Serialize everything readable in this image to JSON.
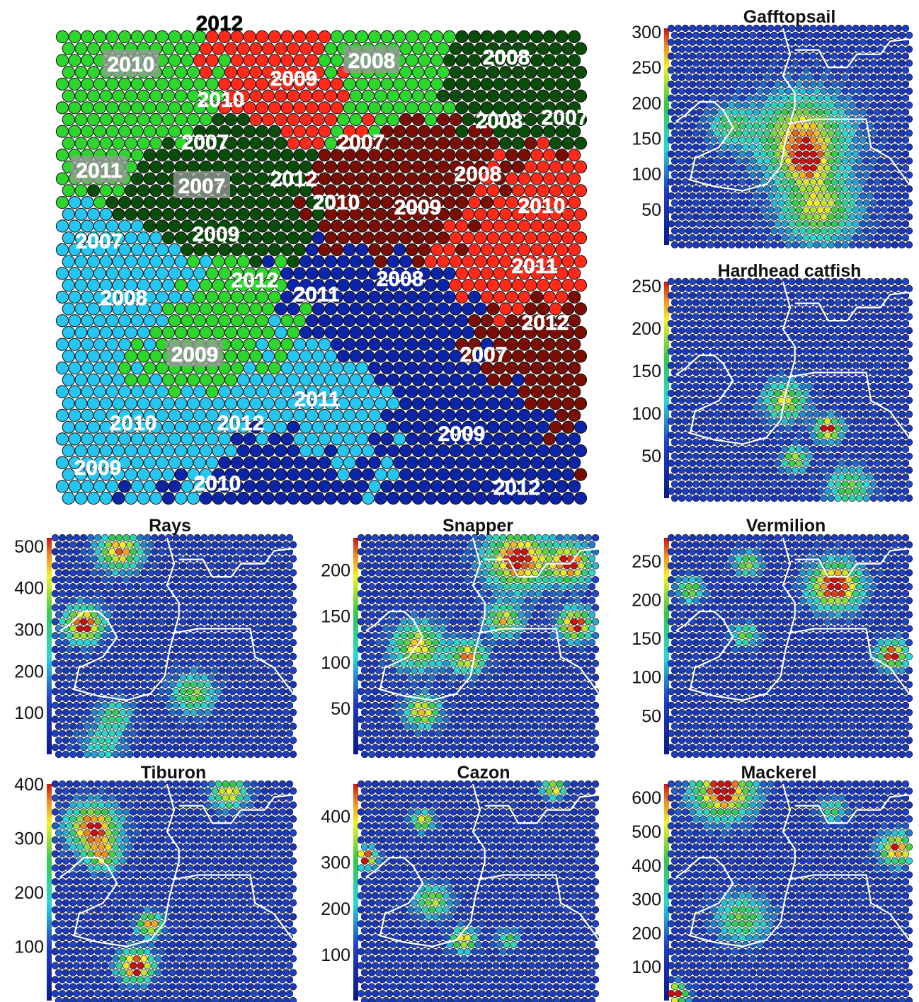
{
  "colors": {
    "green_light": "#2dd62d",
    "green_dark": "#0a4d0a",
    "red_light": "#ff2a1a",
    "red_dark": "#7a0e04",
    "blue_light": "#26c6f2",
    "blue_dark": "#0c24a8",
    "heat_low": "#1f3fc4",
    "heat_mid": "#2bd6b8",
    "heat_green": "#34c84a",
    "heat_yellow": "#f2f22a",
    "heat_high": "#e81a10",
    "boundary_white": "#ffffff",
    "boundary_black": "#000000"
  },
  "chart_data": [
    {
      "type": "heatmap",
      "title": "",
      "description_kind": "cluster map",
      "clusters": [
        {
          "color_group": "green_light",
          "labels": [
            "2010",
            "2011",
            "2009"
          ]
        },
        {
          "color_group": "green_dark",
          "labels": [
            "2010",
            "2007",
            "2007",
            "2009",
            "2012"
          ]
        },
        {
          "color_group": "red_light",
          "labels": [
            "2009",
            "2008",
            "2007",
            "2012",
            "2010",
            "2011",
            "2012"
          ]
        },
        {
          "color_group": "red_dark",
          "labels": [
            "2007",
            "2008",
            "2010",
            "2009",
            "2012"
          ]
        },
        {
          "color_group": "green_light_2",
          "labels": [
            "2008"
          ]
        },
        {
          "color_group": "green_dark_2",
          "labels": [
            "2008"
          ]
        },
        {
          "color_group": "blue_light",
          "labels": [
            "2007",
            "2008",
            "2010",
            "2012",
            "2009",
            "2011"
          ]
        },
        {
          "color_group": "blue_dark",
          "labels": [
            "2011",
            "2008",
            "2007",
            "2009",
            "2010",
            "2012"
          ]
        }
      ],
      "labels": [
        {
          "text": "2012",
          "style": "dark"
        },
        {
          "text": "2010",
          "style": "boxed"
        },
        {
          "text": "2008",
          "style": "boxed"
        },
        {
          "text": "2008",
          "style": "plain"
        },
        {
          "text": "2009",
          "style": "vertical"
        },
        {
          "text": "2010",
          "style": "plain"
        },
        {
          "text": "2008",
          "style": "plain"
        },
        {
          "text": "2007",
          "style": "vertical-small"
        },
        {
          "text": "2007",
          "style": "plain"
        },
        {
          "text": "2007",
          "style": "diagonal"
        },
        {
          "text": "2011",
          "style": "boxed"
        },
        {
          "text": "2007",
          "style": "boxed"
        },
        {
          "text": "2012",
          "style": "stacked"
        },
        {
          "text": "2008",
          "style": "diagonal"
        },
        {
          "text": "2010",
          "style": "diagonal"
        },
        {
          "text": "2009",
          "style": "plain"
        },
        {
          "text": "2010",
          "style": "diagonal"
        },
        {
          "text": "2007",
          "style": "diagonal"
        },
        {
          "text": "2009",
          "style": "plain"
        },
        {
          "text": "2011",
          "style": "diagonal"
        },
        {
          "text": "2012",
          "style": "diagonal"
        },
        {
          "text": "2008",
          "style": "plain"
        },
        {
          "text": "2011",
          "style": "plain"
        },
        {
          "text": "2008",
          "style": "plain"
        },
        {
          "text": "2012",
          "style": "diagonal"
        },
        {
          "text": "2009",
          "style": "boxed"
        },
        {
          "text": "2007",
          "style": "plain"
        },
        {
          "text": "2011",
          "style": "plain"
        },
        {
          "text": "2010",
          "style": "plain"
        },
        {
          "text": "2012",
          "style": "plain"
        },
        {
          "text": "2009",
          "style": "plain"
        },
        {
          "text": "2009",
          "style": "plain"
        },
        {
          "text": "2010",
          "style": "plain"
        },
        {
          "text": "2012",
          "style": "plain"
        }
      ]
    },
    {
      "type": "heatmap",
      "title": "Gafftopsail",
      "colorbar_ticks": [
        300,
        250,
        200,
        150,
        100,
        50
      ],
      "range": [
        0,
        305
      ],
      "hotspots": [
        [
          0.55,
          0.5,
          0.22,
          210
        ],
        [
          0.62,
          0.83,
          0.18,
          175
        ],
        [
          0.25,
          0.45,
          0.1,
          120
        ],
        [
          0.57,
          0.62,
          0.1,
          120
        ]
      ]
    },
    {
      "type": "heatmap",
      "title": "Hardhead catfish",
      "colorbar_ticks": [
        250,
        200,
        150,
        100,
        50
      ],
      "range": [
        0,
        255
      ],
      "hotspots": [
        [
          0.48,
          0.55,
          0.1,
          150
        ],
        [
          0.66,
          0.68,
          0.06,
          220
        ],
        [
          0.52,
          0.82,
          0.06,
          150
        ],
        [
          0.75,
          0.95,
          0.1,
          120
        ]
      ]
    },
    {
      "type": "heatmap",
      "title": "Rays",
      "colorbar_ticks": [
        500,
        400,
        300,
        200,
        100
      ],
      "range": [
        0,
        520
      ],
      "hotspots": [
        [
          0.12,
          0.4,
          0.09,
          470
        ],
        [
          0.27,
          0.06,
          0.1,
          380
        ],
        [
          0.58,
          0.72,
          0.1,
          260
        ],
        [
          0.25,
          0.82,
          0.08,
          200
        ],
        [
          0.2,
          0.95,
          0.1,
          160
        ]
      ]
    },
    {
      "type": "heatmap",
      "title": "Snapper",
      "colorbar_ticks": [
        200,
        150,
        100,
        50
      ],
      "range": [
        0,
        235
      ],
      "hotspots": [
        [
          0.66,
          0.1,
          0.15,
          200
        ],
        [
          0.88,
          0.12,
          0.1,
          190
        ],
        [
          0.24,
          0.5,
          0.12,
          150
        ],
        [
          0.26,
          0.8,
          0.08,
          160
        ],
        [
          0.45,
          0.55,
          0.08,
          170
        ],
        [
          0.6,
          0.38,
          0.08,
          150
        ],
        [
          0.9,
          0.4,
          0.08,
          200
        ]
      ]
    },
    {
      "type": "heatmap",
      "title": "Vermilion",
      "colorbar_ticks": [
        250,
        200,
        150,
        100,
        50
      ],
      "range": [
        0,
        280
      ],
      "hotspots": [
        [
          0.69,
          0.22,
          0.12,
          255
        ],
        [
          0.93,
          0.54,
          0.07,
          230
        ],
        [
          0.32,
          0.12,
          0.06,
          150
        ],
        [
          0.08,
          0.24,
          0.06,
          150
        ],
        [
          0.31,
          0.45,
          0.06,
          130
        ]
      ]
    },
    {
      "type": "heatmap",
      "title": "Tiburon",
      "colorbar_ticks": [
        400,
        300,
        200,
        100
      ],
      "range": [
        0,
        400
      ],
      "hotspots": [
        [
          0.16,
          0.2,
          0.12,
          330
        ],
        [
          0.34,
          0.84,
          0.08,
          380
        ],
        [
          0.4,
          0.65,
          0.06,
          300
        ],
        [
          0.73,
          0.04,
          0.08,
          260
        ],
        [
          0.2,
          0.33,
          0.08,
          220
        ]
      ]
    },
    {
      "type": "heatmap",
      "title": "Cazon",
      "colorbar_ticks": [
        400,
        300,
        200,
        100
      ],
      "range": [
        0,
        470
      ],
      "hotspots": [
        [
          0.02,
          0.34,
          0.05,
          420
        ],
        [
          0.3,
          0.54,
          0.08,
          260
        ],
        [
          0.43,
          0.72,
          0.06,
          320
        ],
        [
          0.26,
          0.17,
          0.05,
          300
        ],
        [
          0.81,
          0.02,
          0.05,
          320
        ],
        [
          0.62,
          0.72,
          0.05,
          200
        ]
      ]
    },
    {
      "type": "heatmap",
      "title": "Mackerel",
      "colorbar_ticks": [
        600,
        500,
        400,
        300,
        200,
        100
      ],
      "range": [
        0,
        640
      ],
      "hotspots": [
        [
          0.22,
          0.03,
          0.14,
          560
        ],
        [
          0.95,
          0.3,
          0.08,
          500
        ],
        [
          0.3,
          0.62,
          0.12,
          300
        ],
        [
          0.02,
          0.97,
          0.05,
          640
        ],
        [
          0.68,
          0.12,
          0.06,
          250
        ]
      ]
    }
  ]
}
